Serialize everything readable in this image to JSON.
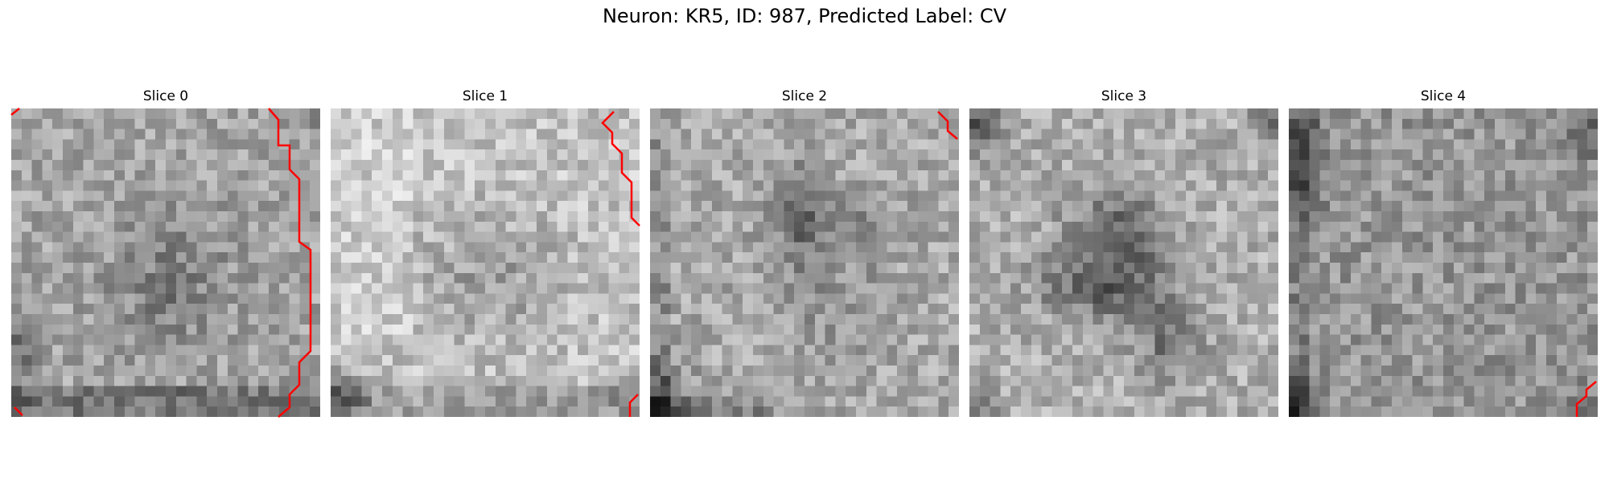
{
  "figure": {
    "title": "Neuron: KR5, ID: 987, Predicted Label: CV",
    "contour_color": "#ff0000",
    "colormap": "grayscale"
  },
  "slices": [
    {
      "label": "Slice 0"
    },
    {
      "label": "Slice 1"
    },
    {
      "label": "Slice 2"
    },
    {
      "label": "Slice 3"
    },
    {
      "label": "Slice 4"
    }
  ]
}
